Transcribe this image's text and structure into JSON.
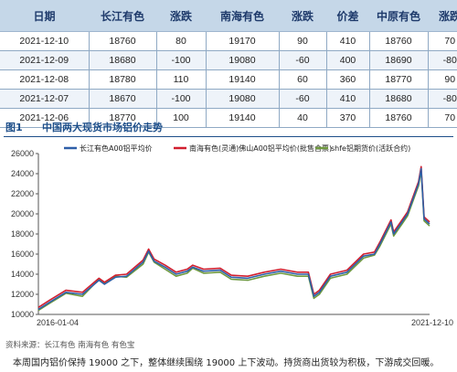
{
  "table": {
    "headers": [
      "日期",
      "长江有色",
      "涨跌",
      "南海有色",
      "涨跌",
      "价差",
      "中原有色",
      "涨跌"
    ],
    "rows": [
      [
        "2021-12-10",
        "18760",
        "80",
        "19170",
        "90",
        "410",
        "18760",
        "70"
      ],
      [
        "2021-12-09",
        "18680",
        "-100",
        "19080",
        "-60",
        "400",
        "18690",
        "-80"
      ],
      [
        "2021-12-08",
        "18780",
        "110",
        "19140",
        "60",
        "360",
        "18770",
        "90"
      ],
      [
        "2021-12-07",
        "18670",
        "-100",
        "19080",
        "-60",
        "410",
        "18680",
        "-80"
      ],
      [
        "2021-12-06",
        "18770",
        "100",
        "19140",
        "40",
        "370",
        "18760",
        "70"
      ]
    ]
  },
  "figure": {
    "number": "图1",
    "title": "中国两大现货市场铝价走势"
  },
  "chart_data": {
    "type": "line",
    "x_range": [
      "2016-01-04",
      "2021-12-10"
    ],
    "x_tick_labels": [
      "2016-01-04",
      "2021-12-10"
    ],
    "ylim": [
      10000,
      26000
    ],
    "y_ticks": [
      10000,
      12000,
      14000,
      16000,
      18000,
      20000,
      22000,
      24000,
      26000
    ],
    "legend_position": "top",
    "series": [
      {
        "name": "长江有色A00铝平均价",
        "color": "#2e5fa8",
        "x": [
          "2016-01",
          "2016-03",
          "2016-06",
          "2016-09",
          "2016-12",
          "2017-01",
          "2017-03",
          "2017-05",
          "2017-08",
          "2017-09",
          "2017-10",
          "2017-12",
          "2018-02",
          "2018-04",
          "2018-05",
          "2018-07",
          "2018-10",
          "2018-12",
          "2019-03",
          "2019-06",
          "2019-09",
          "2019-12",
          "2020-02",
          "2020-03",
          "2020-04",
          "2020-06",
          "2020-09",
          "2020-12",
          "2021-02",
          "2021-03",
          "2021-05",
          "2021-05",
          "2021-07",
          "2021-08",
          "2021-10",
          "2021-10",
          "2021-11",
          "2021-12"
        ],
        "y": [
          10500,
          11200,
          12200,
          12000,
          13400,
          13000,
          13700,
          13800,
          15200,
          16300,
          15300,
          14700,
          14000,
          14300,
          14700,
          14300,
          14400,
          13700,
          13600,
          14000,
          14300,
          14000,
          14000,
          11800,
          12200,
          13800,
          14200,
          15800,
          16000,
          17000,
          19200,
          18000,
          19200,
          20000,
          23000,
          24500,
          19500,
          19000
        ]
      },
      {
        "name": "南海有色(灵通)佛山A00铝平均价(批售含票)",
        "color": "#d11f2f",
        "x": [
          "2016-01",
          "2016-03",
          "2016-06",
          "2016-09",
          "2016-12",
          "2017-01",
          "2017-03",
          "2017-05",
          "2017-08",
          "2017-09",
          "2017-10",
          "2017-12",
          "2018-02",
          "2018-04",
          "2018-05",
          "2018-07",
          "2018-10",
          "2018-12",
          "2019-03",
          "2019-06",
          "2019-09",
          "2019-12",
          "2020-02",
          "2020-03",
          "2020-04",
          "2020-06",
          "2020-09",
          "2020-12",
          "2021-02",
          "2021-03",
          "2021-05",
          "2021-05",
          "2021-07",
          "2021-08",
          "2021-10",
          "2021-10",
          "2021-11",
          "2021-12"
        ],
        "y": [
          10700,
          11400,
          12400,
          12200,
          13600,
          13200,
          13900,
          14000,
          15400,
          16500,
          15500,
          14900,
          14200,
          14500,
          14900,
          14500,
          14600,
          13900,
          13800,
          14200,
          14500,
          14200,
          14200,
          12000,
          12400,
          14000,
          14400,
          16000,
          16200,
          17200,
          19400,
          18200,
          19400,
          20200,
          23200,
          24700,
          19700,
          19200
        ]
      },
      {
        "name": "shfe铝期货价(活跃合约)",
        "color": "#6f9a3f",
        "x": [
          "2016-01",
          "2016-03",
          "2016-06",
          "2016-09",
          "2016-12",
          "2017-01",
          "2017-03",
          "2017-05",
          "2017-08",
          "2017-09",
          "2017-10",
          "2017-12",
          "2018-02",
          "2018-04",
          "2018-05",
          "2018-07",
          "2018-10",
          "2018-12",
          "2019-03",
          "2019-06",
          "2019-09",
          "2019-12",
          "2020-02",
          "2020-03",
          "2020-04",
          "2020-06",
          "2020-09",
          "2020-12",
          "2021-02",
          "2021-03",
          "2021-05",
          "2021-05",
          "2021-07",
          "2021-08",
          "2021-10",
          "2021-10",
          "2021-11",
          "2021-12"
        ],
        "y": [
          10400,
          11100,
          12100,
          11800,
          13500,
          13100,
          13800,
          13700,
          15000,
          16200,
          15200,
          14500,
          13800,
          14100,
          14600,
          14100,
          14200,
          13500,
          13400,
          13800,
          14100,
          13800,
          13800,
          11600,
          12000,
          13600,
          14000,
          15600,
          15900,
          16800,
          19000,
          17800,
          19000,
          19800,
          22800,
          24300,
          19300,
          18800
        ]
      }
    ]
  },
  "footer": {
    "source": "资料来源：长江有色 南海有色 有色宝",
    "body": "本周国内铝价保持 19000 之下，整体继续围绕 19000 上下波动。持货商出货较为积极，下游成交回暖。"
  }
}
